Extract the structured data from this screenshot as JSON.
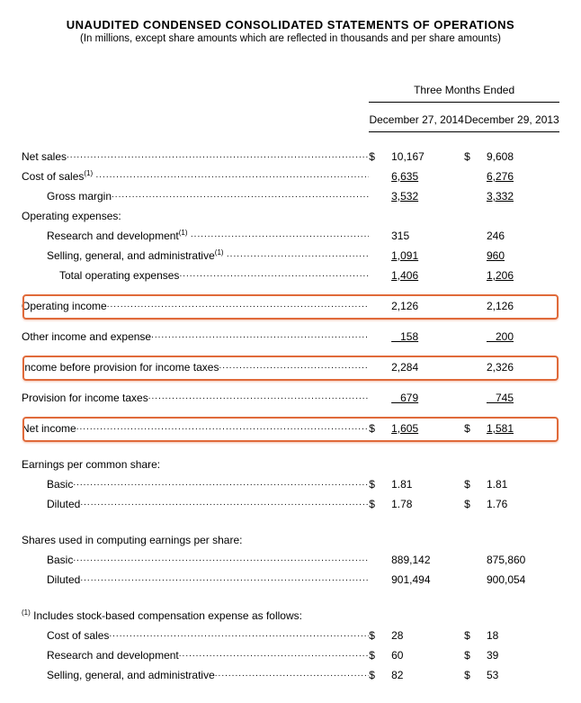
{
  "header": {
    "title": "UNAUDITED CONDENSED CONSOLIDATED STATEMENTS OF OPERATIONS",
    "subtitle": "(In millions, except share amounts which are reflected in thousands and per share amounts)"
  },
  "periods": {
    "group_label": "Three Months Ended",
    "col1": "December 27, 2014",
    "col2": "December 29, 2013"
  },
  "rows": {
    "net_sales": {
      "label": "Net sales",
      "d1": "$",
      "v1": "10,167",
      "d2": "$",
      "v2": "9,608"
    },
    "cost_of_sales": {
      "label": "Cost of sales",
      "sup": "(1)",
      "v1": "6,635",
      "v2": "6,276",
      "u": true
    },
    "gross_margin": {
      "label": "Gross margin",
      "v1": "3,532",
      "v2": "3,332",
      "u": true
    },
    "opex_header": {
      "label": "Operating expenses:"
    },
    "rnd": {
      "label": "Research and development",
      "sup": "(1)",
      "v1": "315",
      "v2": "246"
    },
    "sga": {
      "label": "Selling, general, and administrative",
      "sup": "(1)",
      "v1": "1,091",
      "v2": "960",
      "u": true
    },
    "total_opex": {
      "label": "Total operating expenses",
      "v1": "1,406",
      "v2": "1,206",
      "u": true
    },
    "op_income": {
      "label": "Operating income",
      "v1": "2,126",
      "v2": "2,126",
      "hl": true
    },
    "other_income": {
      "label": "Other income and expense",
      "v1": "   158",
      "v2": "   200",
      "u": true
    },
    "income_before": {
      "label": "Income before provision for income taxes",
      "v1": "2,284",
      "v2": "2,326",
      "hl": true
    },
    "provision": {
      "label": "Provision for income taxes",
      "v1": "   679",
      "v2": "   745",
      "u": true
    },
    "net_income": {
      "label": "Net income",
      "d1": "$",
      "v1": "1,605",
      "d2": "$",
      "v2": "1,581",
      "u": true,
      "hl": true
    },
    "eps_header": {
      "label": "Earnings per common share:"
    },
    "eps_basic": {
      "label": "Basic",
      "d1": "$",
      "v1": "1.81",
      "d2": "$",
      "v2": "1.81"
    },
    "eps_diluted": {
      "label": "Diluted",
      "d1": "$",
      "v1": "1.78",
      "d2": "$",
      "v2": "1.76"
    },
    "shares_header": {
      "label": "Shares used in computing earnings per share:"
    },
    "shares_basic": {
      "label": "Basic",
      "v1": "889,142",
      "v2": "875,860"
    },
    "shares_diluted": {
      "label": "Diluted",
      "v1": "901,494",
      "v2": "900,054"
    },
    "footnote_header": {
      "label": "Includes stock-based compensation expense as follows:",
      "sup_pre": "(1)"
    },
    "fn_cos": {
      "label": "Cost of sales",
      "d1": "$",
      "v1": "28",
      "d2": "$",
      "v2": "18"
    },
    "fn_rnd": {
      "label": "Research and development",
      "d1": "$",
      "v1": "60",
      "d2": "$",
      "v2": "39"
    },
    "fn_sga": {
      "label": "Selling, general, and administrative",
      "d1": "$",
      "v1": "82",
      "d2": "$",
      "v2": "53"
    }
  },
  "style": {
    "highlight_border": "#e06a3a",
    "background": "#ffffff",
    "font_family": "Arial",
    "base_font_size_pt": 9
  }
}
